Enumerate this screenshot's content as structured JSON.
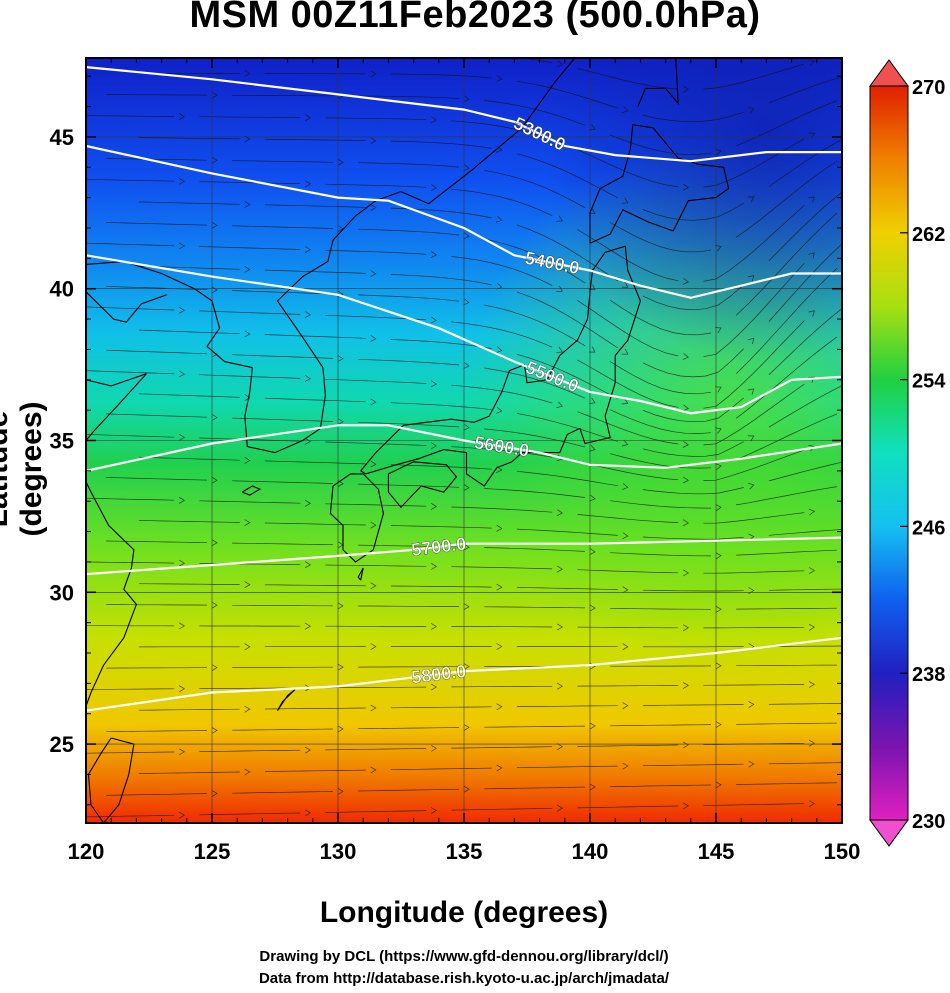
{
  "title": "MSM 00Z11Feb2023 (500.0hPa)",
  "xlabel": "Longitude (degrees)",
  "ylabel": "Latitude  (degrees)",
  "credits": [
    "Drawing by DCL (https://www.gfd-dennou.org/library/dcl/)",
    "Data from http://database.rish.kyoto-u.ac.jp/arch/jmadata/"
  ],
  "chart_data": {
    "type": "heatmap",
    "x_range": [
      120,
      150
    ],
    "y_range": [
      22.4,
      47.6
    ],
    "x_ticks": [
      "120",
      "125",
      "130",
      "135",
      "140",
      "145",
      "150"
    ],
    "y_ticks": [
      "25",
      "30",
      "35",
      "40",
      "45"
    ],
    "grid": true,
    "colorbar": {
      "range": [
        230,
        270
      ],
      "tick_labels": [
        "230",
        "238",
        "246",
        "254",
        "262",
        "270"
      ],
      "colors": [
        "#e020c0",
        "#7a14b0",
        "#2020c0",
        "#1060f0",
        "#14c0f0",
        "#10e0c0",
        "#20d040",
        "#a8e010",
        "#f0d000",
        "#f08000",
        "#e02000"
      ]
    },
    "contours": [
      {
        "label": "5300.0",
        "points": [
          [
            120,
            47.3
          ],
          [
            125,
            46.9
          ],
          [
            130,
            46.4
          ],
          [
            135,
            45.9
          ],
          [
            137,
            45.5
          ],
          [
            139,
            44.7
          ],
          [
            141,
            44.4
          ],
          [
            144,
            44.2
          ],
          [
            147,
            44.5
          ],
          [
            150,
            44.5
          ]
        ]
      },
      {
        "label": "5400.0",
        "points": [
          [
            120,
            44.7
          ],
          [
            125,
            43.8
          ],
          [
            130,
            43.0
          ],
          [
            132,
            42.9
          ],
          [
            135,
            42.0
          ],
          [
            137,
            41.1
          ],
          [
            140,
            40.6
          ],
          [
            142,
            40.1
          ],
          [
            144,
            39.7
          ],
          [
            146,
            40.1
          ],
          [
            148,
            40.5
          ],
          [
            150,
            40.5
          ]
        ]
      },
      {
        "label": "5500.0",
        "points": [
          [
            120,
            41.1
          ],
          [
            125,
            40.4
          ],
          [
            130,
            39.8
          ],
          [
            134,
            38.7
          ],
          [
            137,
            37.6
          ],
          [
            140,
            36.6
          ],
          [
            142,
            36.3
          ],
          [
            144,
            35.9
          ],
          [
            146,
            36.1
          ],
          [
            148,
            37.0
          ],
          [
            150,
            37.1
          ]
        ]
      },
      {
        "label": "5600.0",
        "points": [
          [
            120,
            34.0
          ],
          [
            125,
            34.9
          ],
          [
            130,
            35.5
          ],
          [
            132,
            35.5
          ],
          [
            135,
            35.0
          ],
          [
            138,
            34.6
          ],
          [
            140,
            34.2
          ],
          [
            143,
            34.1
          ],
          [
            146,
            34.4
          ],
          [
            150,
            34.9
          ]
        ]
      },
      {
        "label": "5700.0",
        "points": [
          [
            120,
            30.6
          ],
          [
            125,
            30.9
          ],
          [
            130,
            31.2
          ],
          [
            133,
            31.4
          ],
          [
            135,
            31.6
          ],
          [
            140,
            31.6
          ],
          [
            145,
            31.7
          ],
          [
            150,
            31.8
          ]
        ]
      },
      {
        "label": "5800.0",
        "points": [
          [
            120,
            26.1
          ],
          [
            125,
            26.7
          ],
          [
            130,
            26.9
          ],
          [
            133,
            27.2
          ],
          [
            135,
            27.4
          ],
          [
            140,
            27.6
          ],
          [
            145,
            28.0
          ],
          [
            150,
            28.5
          ]
        ]
      }
    ]
  }
}
